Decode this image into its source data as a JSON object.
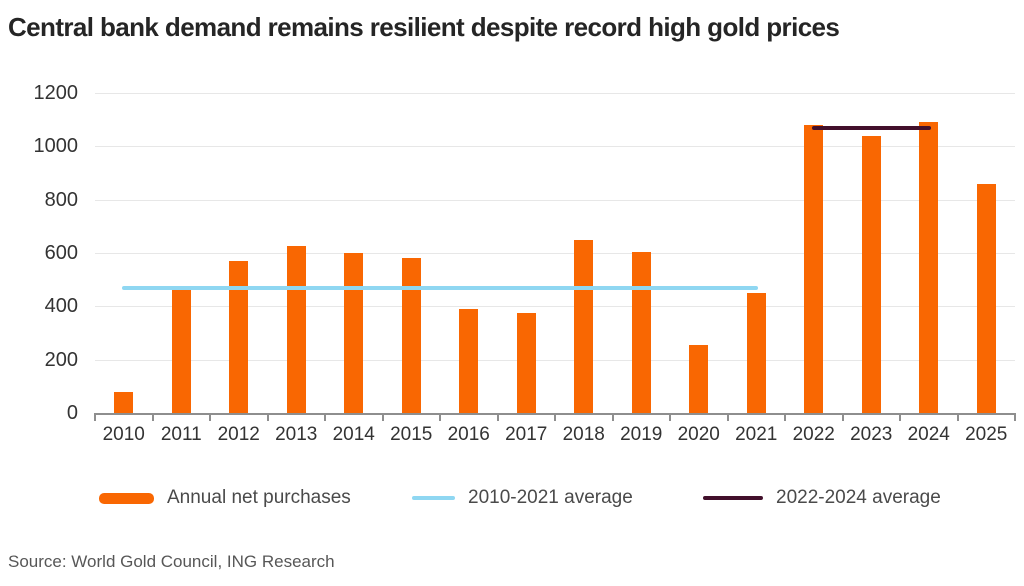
{
  "title": "Central bank demand remains resilient despite record high gold prices",
  "source": "Source: World Gold Council, ING Research",
  "colors": {
    "bar": "#F96702",
    "avg_2010_2021": "#8FD7F2",
    "avg_2022_2024": "#42102B",
    "axis": "#8E8E8E",
    "grid": "#E7E7E7",
    "title_text": "#252525",
    "axis_text": "#333333",
    "legend_text": "#4A4A4A",
    "source_text": "#575757"
  },
  "legend": [
    {
      "label": "Annual net purchases",
      "swatch": "bar",
      "color": "#F96702"
    },
    {
      "label": "2010-2021 average",
      "swatch": "line",
      "color": "#8FD7F2"
    },
    {
      "label": "2022-2024 average",
      "swatch": "line",
      "color": "#42102B"
    }
  ],
  "chart_data": {
    "type": "bar",
    "title": "Central bank demand remains resilient despite record high gold prices",
    "categories": [
      "2010",
      "2011",
      "2012",
      "2013",
      "2014",
      "2015",
      "2016",
      "2017",
      "2018",
      "2019",
      "2020",
      "2021",
      "2022",
      "2023",
      "2024",
      "2025"
    ],
    "series": [
      {
        "name": "Annual net purchases",
        "values": [
          80,
          465,
          570,
          625,
          600,
          580,
          390,
          375,
          650,
          605,
          255,
          450,
          1080,
          1040,
          1090,
          860
        ]
      }
    ],
    "overlays": [
      {
        "name": "2010-2021 average",
        "value": 470,
        "x_start": "2010",
        "x_end": "2021",
        "color": "#8FD7F2"
      },
      {
        "name": "2022-2024 average",
        "value": 1070,
        "x_start": "2022",
        "x_end": "2024",
        "color": "#42102B"
      }
    ],
    "xlabel": "",
    "ylabel": "",
    "ylim": [
      0,
      1200
    ],
    "ytick_step": 200,
    "grid": true,
    "legend_position": "bottom"
  }
}
